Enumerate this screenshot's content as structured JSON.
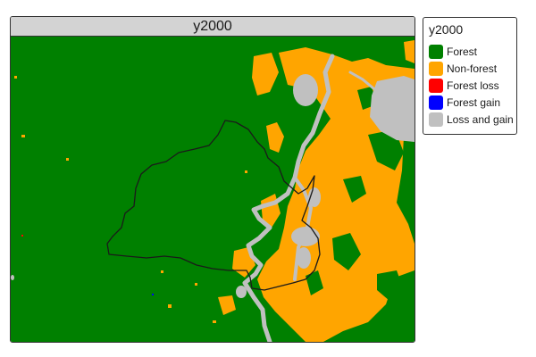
{
  "panel": {
    "title": "y2000"
  },
  "legend": {
    "title": "y2000",
    "items": [
      {
        "label": "Forest",
        "color": "#008000"
      },
      {
        "label": "Non-forest",
        "color": "#FFA500"
      },
      {
        "label": "Forest loss",
        "color": "#FF0000"
      },
      {
        "label": "Forest gain",
        "color": "#0000FF"
      },
      {
        "label": "Loss and gain",
        "color": "#C0C0C0"
      }
    ]
  },
  "colors": {
    "forest": "#008000",
    "non_forest": "#FFA500",
    "loss_and_gain": "#C0C0C0",
    "boundary": "#1a1a1a"
  }
}
